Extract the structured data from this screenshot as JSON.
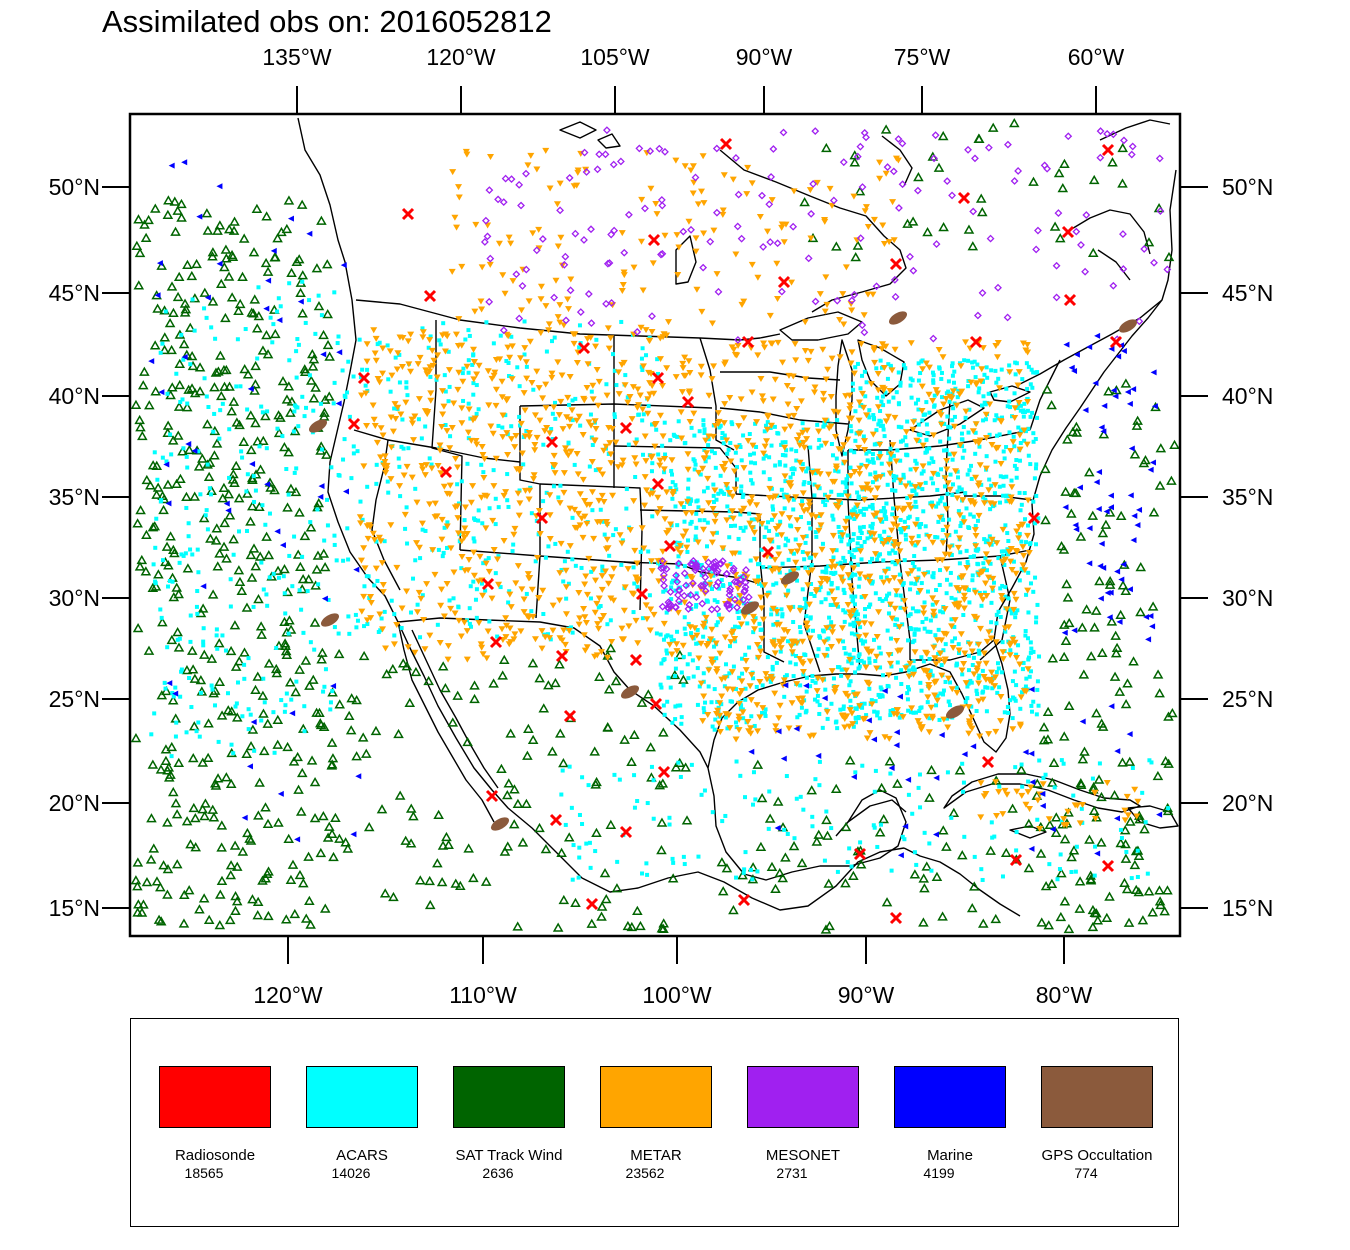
{
  "title": "Assimilated obs on: 2016052812",
  "top_axis": [
    "135°W",
    "120°W",
    "105°W",
    "90°W",
    "75°W",
    "60°W"
  ],
  "bottom_axis": [
    "120°W",
    "110°W",
    "100°W",
    "90°W",
    "80°W"
  ],
  "left_axis": [
    "50°N",
    "45°N",
    "40°N",
    "35°N",
    "30°N",
    "25°N",
    "20°N",
    "15°N"
  ],
  "right_axis": [
    "50°N",
    "45°N",
    "40°N",
    "35°N",
    "30°N",
    "25°N",
    "20°N",
    "15°N"
  ],
  "legend": [
    {
      "label": "Radiosonde",
      "count": "18565",
      "color": "#ff0000"
    },
    {
      "label": "ACARS",
      "count": "14026",
      "color": "#00ffff"
    },
    {
      "label": "SAT Track Wind",
      "count": "2636",
      "color": "#006400"
    },
    {
      "label": "METAR",
      "count": "23562",
      "color": "#ffa500"
    },
    {
      "label": "MESONET",
      "count": "2731",
      "color": "#a020f0"
    },
    {
      "label": "Marine",
      "count": "4199",
      "color": "#0000ff"
    },
    {
      "label": "GPS Occultation",
      "count": "774",
      "color": "#8b5a3c"
    }
  ]
}
